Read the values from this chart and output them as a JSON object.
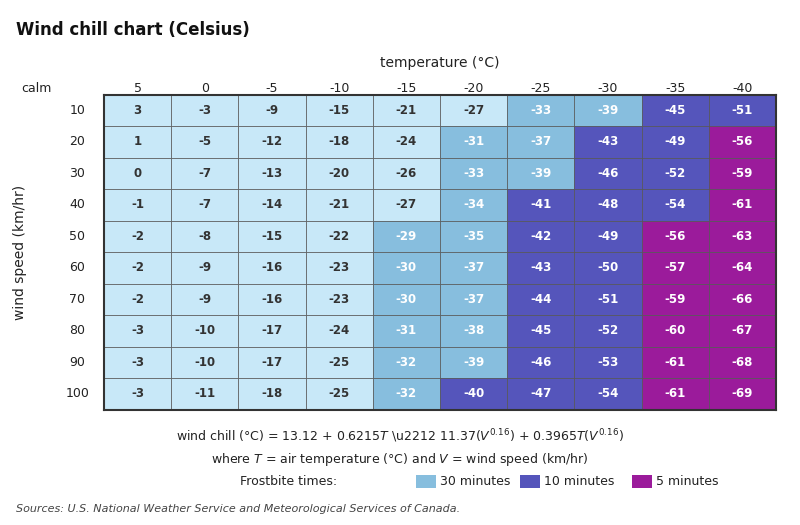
{
  "title": "Wind chill chart (Celsius)",
  "xlabel": "temperature (°C)",
  "ylabel": "wind speed (km/hr)",
  "calm_label": "calm",
  "temperatures": [
    5,
    0,
    -5,
    -10,
    -15,
    -20,
    -25,
    -30,
    -35,
    -40
  ],
  "wind_speeds": [
    10,
    20,
    30,
    40,
    50,
    60,
    70,
    80,
    90,
    100
  ],
  "wind_chill": [
    [
      3,
      -3,
      -9,
      -15,
      -21,
      -27,
      -33,
      -39,
      -45,
      -51
    ],
    [
      1,
      -5,
      -12,
      -18,
      -24,
      -31,
      -37,
      -43,
      -49,
      -56
    ],
    [
      0,
      -7,
      -13,
      -20,
      -26,
      -33,
      -39,
      -46,
      -52,
      -59
    ],
    [
      -1,
      -7,
      -14,
      -21,
      -27,
      -34,
      -41,
      -48,
      -54,
      -61
    ],
    [
      -2,
      -8,
      -15,
      -22,
      -29,
      -35,
      -42,
      -49,
      -56,
      -63
    ],
    [
      -2,
      -9,
      -16,
      -23,
      -30,
      -37,
      -43,
      -50,
      -57,
      -64
    ],
    [
      -2,
      -9,
      -16,
      -23,
      -30,
      -37,
      -44,
      -51,
      -59,
      -66
    ],
    [
      -3,
      -10,
      -17,
      -24,
      -31,
      -38,
      -45,
      -52,
      -60,
      -67
    ],
    [
      -3,
      -10,
      -17,
      -25,
      -32,
      -39,
      -46,
      -53,
      -61,
      -68
    ],
    [
      -3,
      -11,
      -18,
      -25,
      -32,
      -40,
      -47,
      -54,
      -61,
      -69
    ]
  ],
  "color_white": "#ffffff",
  "color_light_blue": "#87CEEB",
  "color_medium_blue": "#6699CC",
  "color_dark_purple": "#8B0080",
  "color_30min": "#ADD8F0",
  "color_10min": "#7B7BC8",
  "color_5min": "#9B1F9B",
  "formula_line1": "wind chill (°C) = 13.12 + 0.6215 Τ − 11.37(Υ0.16) + 0.3965Τ(Υ0.16)",
  "sources_text": "Sources: U.S. National Weather Service and Meteorological Services of Canada.",
  "background_color": "#ffffff",
  "grid_color": "#333333",
  "text_dark": "#222222",
  "text_white": "#ffffff",
  "frostbite_30min_threshold": -28,
  "frostbite_10min_threshold": -40,
  "frostbite_5min_threshold": -55
}
